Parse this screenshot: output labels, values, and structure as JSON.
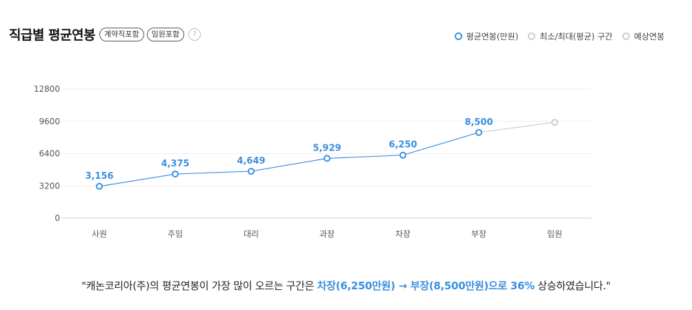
{
  "header": {
    "title": "직급별 평균연봉",
    "chips": [
      "계약직포함",
      "임원포함"
    ],
    "help_icon": "question-icon",
    "help_symbol": "?"
  },
  "legend": [
    {
      "label": "평균연봉(만원)",
      "color": "#3a8fe0"
    },
    {
      "label": "최소/최대(평균) 구간",
      "color": "#cccccc"
    },
    {
      "label": "예상연봉",
      "color": "#cccccc"
    }
  ],
  "chart_data": {
    "type": "line",
    "categories": [
      "사원",
      "주임",
      "대리",
      "과장",
      "차장",
      "부장",
      "임원"
    ],
    "series": [
      {
        "name": "평균연봉(만원)",
        "values": [
          3156,
          4375,
          4649,
          5929,
          6250,
          8500,
          null
        ],
        "labels": [
          "3,156",
          "4,375",
          "4,649",
          "5,929",
          "6,250",
          "8,500",
          ""
        ],
        "color": "#3a8fe0"
      },
      {
        "name": "예상연봉",
        "values": [
          null,
          null,
          null,
          null,
          null,
          8500,
          9500
        ],
        "color": "#cccccc"
      }
    ],
    "yticks": [
      "0",
      "3200",
      "6400",
      "9600",
      "12800"
    ],
    "ylim": [
      0,
      12800
    ],
    "grid": true
  },
  "summary": {
    "prefix": "\"캐논코리아(주)의 평균연봉이 가장 많이 오르는 구간은 ",
    "highlight": "차장(6,250만원) → 부장(8,500만원)으로 36%",
    "suffix": " 상승하였습니다.\""
  }
}
